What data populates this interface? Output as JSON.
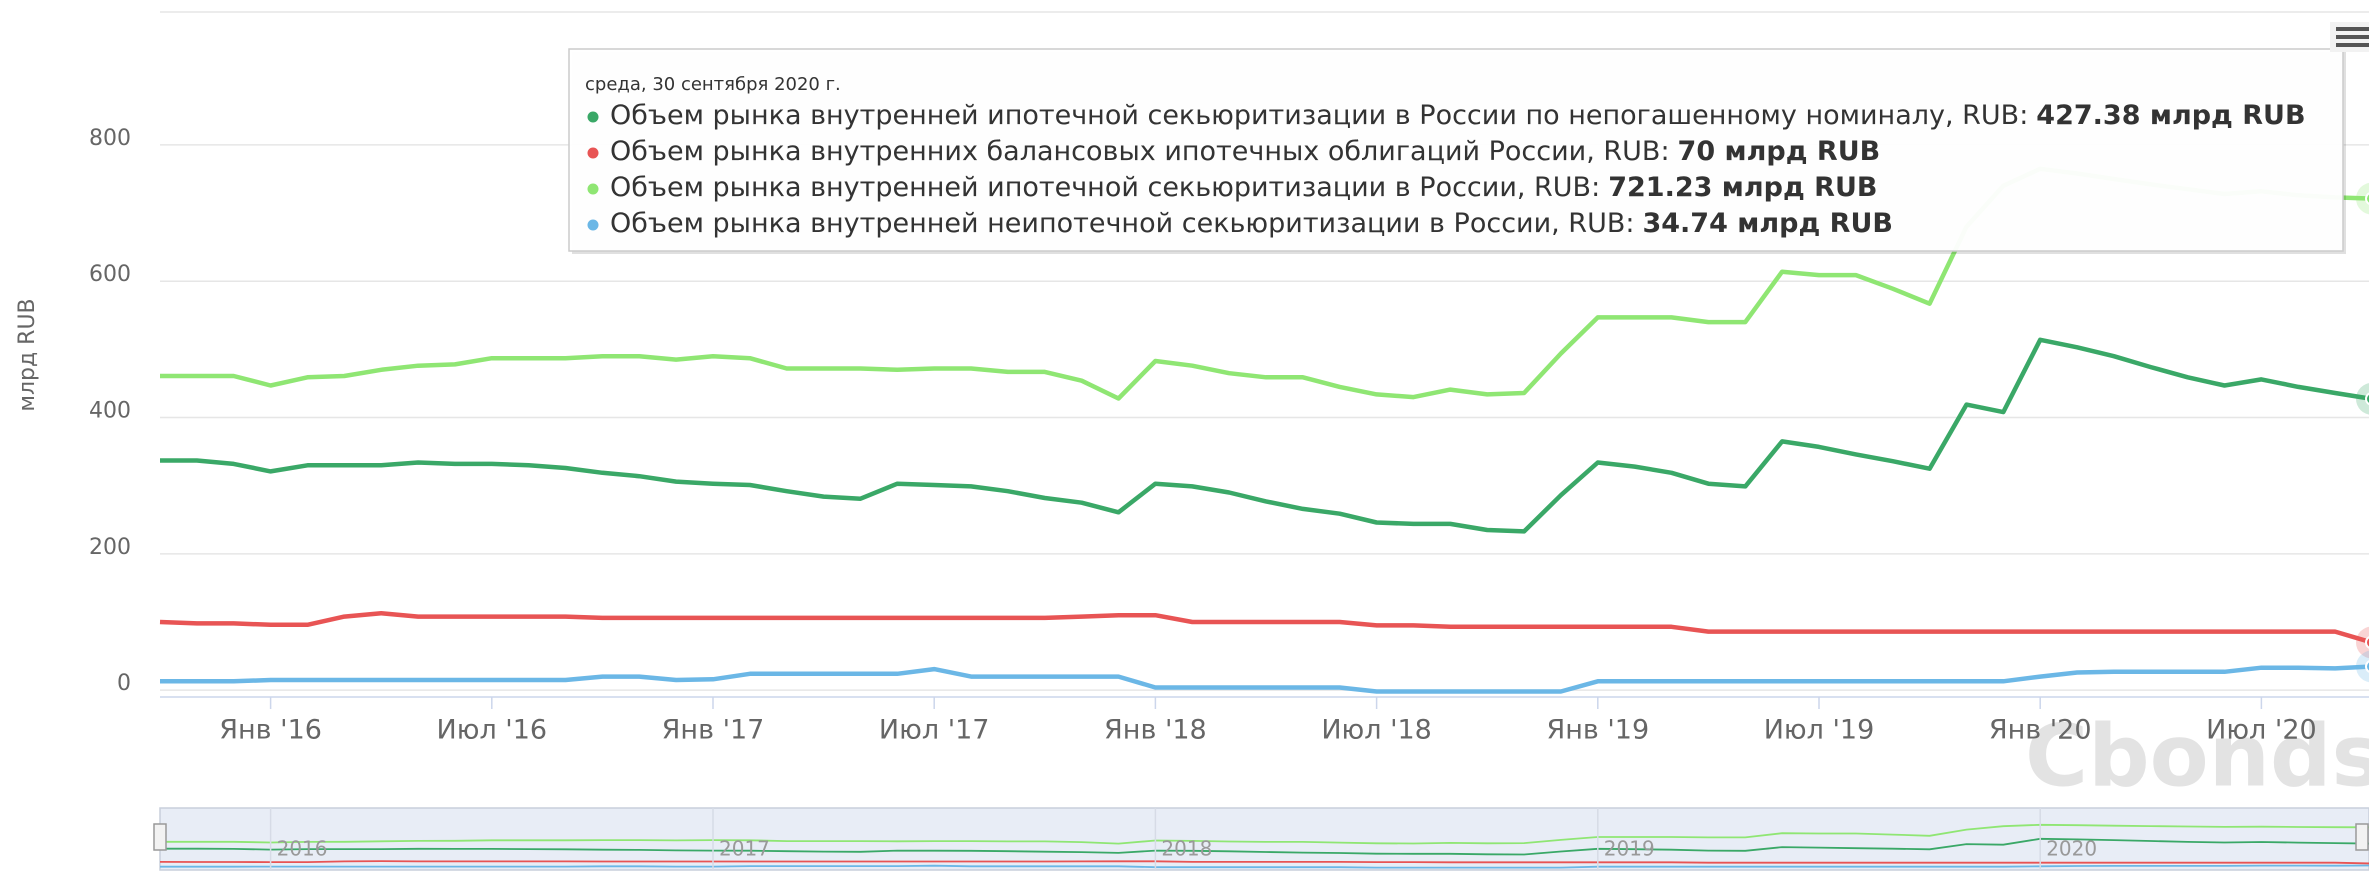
{
  "chart_data": {
    "type": "line",
    "y_axis_title": "млрд RUB",
    "watermark": "Cbonds",
    "x": [
      "2015-09",
      "2015-10",
      "2015-11",
      "2015-12",
      "2016-01",
      "2016-02",
      "2016-03",
      "2016-04",
      "2016-05",
      "2016-06",
      "2016-07",
      "2016-08",
      "2016-09",
      "2016-10",
      "2016-11",
      "2016-12",
      "2017-01",
      "2017-02",
      "2017-03",
      "2017-04",
      "2017-05",
      "2017-06",
      "2017-07",
      "2017-08",
      "2017-09",
      "2017-10",
      "2017-11",
      "2017-12",
      "2018-01",
      "2018-02",
      "2018-03",
      "2018-04",
      "2018-05",
      "2018-06",
      "2018-07",
      "2018-08",
      "2018-09",
      "2018-10",
      "2018-11",
      "2018-12",
      "2019-01",
      "2019-02",
      "2019-03",
      "2019-04",
      "2019-05",
      "2019-06",
      "2019-07",
      "2019-08",
      "2019-09",
      "2019-10",
      "2019-11",
      "2019-12",
      "2020-01",
      "2020-02",
      "2020-03",
      "2020-04",
      "2020-05",
      "2020-06",
      "2020-07",
      "2020-08",
      "2020-09"
    ],
    "xlim": [
      "2015-10",
      "2020-10"
    ],
    "xticks": [
      {
        "value": "2016-01",
        "label": "Янв '16"
      },
      {
        "value": "2016-07",
        "label": "Июл '16"
      },
      {
        "value": "2017-01",
        "label": "Янв '17"
      },
      {
        "value": "2017-07",
        "label": "Июл '17"
      },
      {
        "value": "2018-01",
        "label": "Янв '18"
      },
      {
        "value": "2018-07",
        "label": "Июл '18"
      },
      {
        "value": "2019-01",
        "label": "Янв '19"
      },
      {
        "value": "2019-07",
        "label": "Июл '19"
      },
      {
        "value": "2020-01",
        "label": "Янв '20"
      },
      {
        "value": "2020-07",
        "label": "Июл '20"
      }
    ],
    "ylim": [
      -10,
      995
    ],
    "yticks": [
      0,
      200,
      400,
      600,
      800
    ],
    "grid": true,
    "navigator_ticks": [
      {
        "value": "2016-01",
        "label": "2016"
      },
      {
        "value": "2017-01",
        "label": "2017"
      },
      {
        "value": "2018-01",
        "label": "2018"
      },
      {
        "value": "2019-01",
        "label": "2019"
      },
      {
        "value": "2020-01",
        "label": "2020"
      }
    ],
    "tooltip": {
      "date": "среда, 30 сентября 2020 г.",
      "separator": ":"
    },
    "series": [
      {
        "name": "Объем рынка внутренней ипотечной секьюритизации в России по непогашенному номиналу, RUB",
        "color": "#3aa867",
        "tooltip_label": "427.38 млрд RUB",
        "values": [
          337,
          337,
          332,
          321,
          330,
          330,
          330,
          334,
          332,
          332,
          330,
          326,
          319,
          314,
          306,
          303,
          301,
          292,
          284,
          281,
          303,
          301,
          299,
          292,
          282,
          275,
          261,
          303,
          299,
          290,
          277,
          266,
          259,
          246,
          244,
          244,
          235,
          233,
          286,
          334,
          328,
          319,
          303,
          299,
          365,
          357,
          346,
          336,
          325,
          419,
          408,
          514,
          503,
          490,
          474,
          459,
          447,
          456,
          445,
          436,
          427.38
        ]
      },
      {
        "name": "Объем рынка внутренних балансовых ипотечных облигаций России, RUB",
        "color": "#e85454",
        "tooltip_label": "70 млрд RUB",
        "values": [
          100,
          98,
          98,
          96,
          96,
          108,
          113,
          108,
          108,
          108,
          108,
          108,
          106,
          106,
          106,
          106,
          106,
          106,
          106,
          106,
          106,
          106,
          106,
          106,
          106,
          108,
          110,
          110,
          100,
          100,
          100,
          100,
          100,
          95,
          95,
          93,
          93,
          93,
          93,
          93,
          93,
          93,
          86,
          86,
          86,
          86,
          86,
          86,
          86,
          86,
          86,
          86,
          86,
          86,
          86,
          86,
          86,
          86,
          86,
          86,
          70
        ]
      },
      {
        "name": "Объем рынка внутренней ипотечной секьюритизации в России, RUB",
        "color": "#8fe673",
        "tooltip_label": "721.23 млрд RUB",
        "values": [
          461,
          461,
          461,
          447,
          459,
          461,
          470,
          476,
          478,
          487,
          487,
          487,
          490,
          490,
          485,
          490,
          487,
          472,
          472,
          472,
          470,
          472,
          472,
          467,
          467,
          454,
          428,
          483,
          476,
          465,
          459,
          459,
          445,
          434,
          430,
          441,
          434,
          436,
          494,
          547,
          547,
          547,
          540,
          540,
          614,
          609,
          609,
          589,
          567,
          680,
          740,
          765,
          758,
          750,
          742,
          735,
          728,
          732,
          726,
          723,
          721.23
        ]
      },
      {
        "name": "Объем рынка внутренней неипотечной секьюритизации в России, RUB",
        "color": "#6bb7e6",
        "tooltip_label": "34.74 млрд RUB",
        "values": [
          13,
          13,
          13,
          15,
          15,
          15,
          15,
          15,
          15,
          15,
          15,
          15,
          20,
          20,
          15,
          16,
          24,
          24,
          24,
          24,
          24,
          31,
          20,
          20,
          20,
          20,
          20,
          4,
          4,
          4,
          4,
          4,
          4,
          -2,
          -2,
          -2,
          -2,
          -2,
          -2,
          13,
          13,
          13,
          13,
          13,
          13,
          13,
          13,
          13,
          13,
          13,
          13,
          20,
          26,
          27,
          27,
          27,
          27,
          33,
          33,
          32,
          34.74
        ]
      }
    ]
  }
}
